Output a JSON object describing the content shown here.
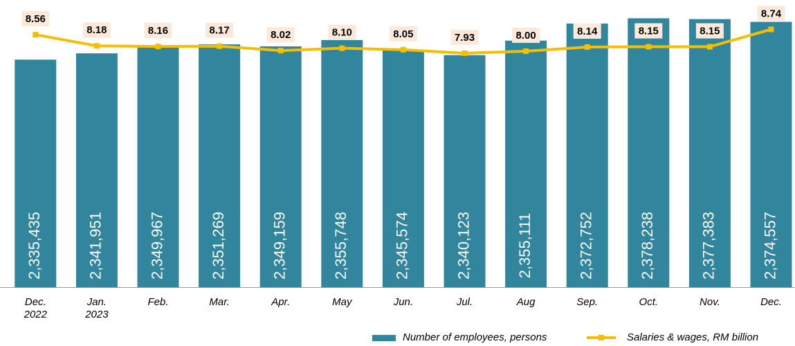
{
  "chart_data": {
    "type": "bar",
    "categories": [
      "Dec.\n2022",
      "Jan.\n2023",
      "Feb.",
      "Mar.",
      "Apr.",
      "May",
      "Jun.",
      "Jul.",
      "Aug",
      "Sep.",
      "Oct.",
      "Nov.",
      "Dec."
    ],
    "series": [
      {
        "name": "Number of employees, persons",
        "type": "bar",
        "color": "#31859c",
        "values": [
          2335435,
          2341951,
          2349967,
          2351269,
          2349159,
          2355748,
          2345574,
          2340123,
          2355111,
          2372752,
          2378238,
          2377383,
          2374557
        ],
        "value_labels": [
          "2,335,435",
          "2,341,951",
          "2,349,967",
          "2,351,269",
          "2,349,159",
          "2,355,748",
          "2,345,574",
          "2,340,123",
          "2,355,111",
          "2,372,752",
          "2,378,238",
          "2,377,383",
          "2,374,557"
        ]
      },
      {
        "name": "Salaries & wages, RM billion",
        "type": "line",
        "axis": "y2",
        "color": "#f5bf00",
        "values": [
          8.56,
          8.18,
          8.16,
          8.17,
          8.02,
          8.1,
          8.05,
          7.93,
          8.0,
          8.14,
          8.15,
          8.15,
          8.74
        ],
        "value_labels": [
          "8.56",
          "8.18",
          "8.16",
          "8.17",
          "8.02",
          "8.10",
          "8.05",
          "7.93",
          "8.00",
          "8.14",
          "8.15",
          "8.15",
          "8.74"
        ]
      }
    ],
    "ylim": [
      2100000,
      2390000
    ],
    "y2lim": [
      0,
      9.5
    ],
    "legend": "bottom-right"
  }
}
